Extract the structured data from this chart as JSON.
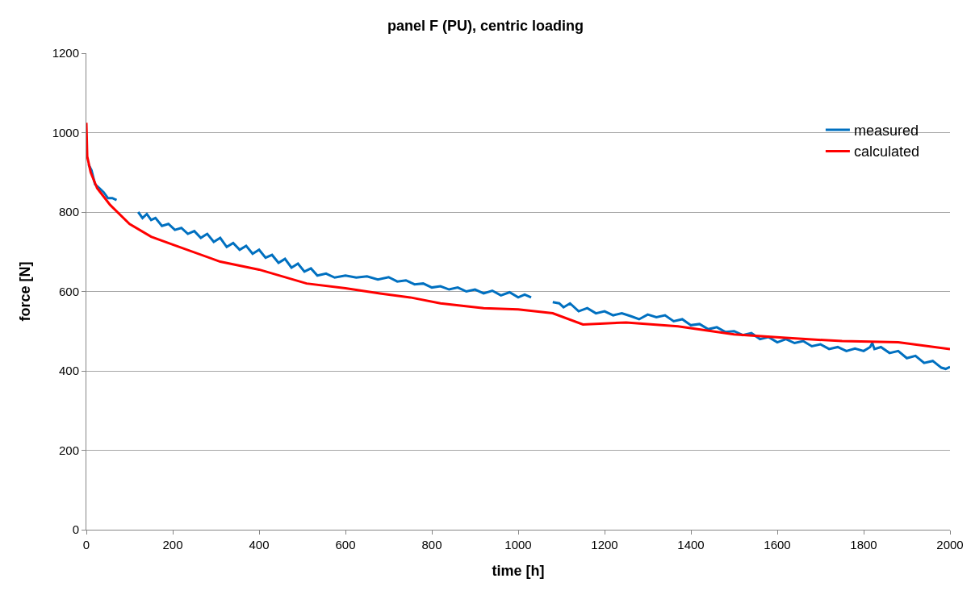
{
  "chart_data": {
    "type": "line",
    "title": "panel F (PU), centric loading",
    "xlabel": "time [h]",
    "ylabel": "force [N]",
    "xlim": [
      0,
      2000
    ],
    "xticks": [
      0,
      200,
      400,
      600,
      800,
      1000,
      1200,
      1400,
      1600,
      1800,
      2000
    ],
    "ylim": [
      0,
      1200
    ],
    "yticks": [
      0,
      200,
      400,
      600,
      800,
      1000,
      1200
    ],
    "grid": "y",
    "legend": "top right",
    "marker": "none",
    "line_style": "solid",
    "series": [
      {
        "name": "measured",
        "color": "#0070c0",
        "x": [
          5,
          12,
          20,
          30,
          40,
          50,
          60,
          70,
          95,
          120,
          130,
          140,
          150,
          160,
          175,
          190,
          205,
          220,
          235,
          250,
          265,
          280,
          295,
          310,
          325,
          340,
          355,
          370,
          385,
          400,
          415,
          430,
          445,
          460,
          475,
          490,
          505,
          520,
          535,
          555,
          575,
          600,
          625,
          650,
          675,
          700,
          720,
          740,
          760,
          780,
          800,
          820,
          840,
          860,
          880,
          900,
          920,
          940,
          960,
          980,
          1000,
          1015,
          1030,
          1055,
          1080,
          1095,
          1105,
          1120,
          1140,
          1160,
          1180,
          1200,
          1220,
          1240,
          1260,
          1280,
          1300,
          1320,
          1340,
          1360,
          1380,
          1400,
          1420,
          1440,
          1460,
          1480,
          1500,
          1520,
          1540,
          1560,
          1580,
          1600,
          1620,
          1640,
          1660,
          1680,
          1700,
          1720,
          1740,
          1760,
          1780,
          1800,
          1815,
          1820,
          1825,
          1840,
          1860,
          1880,
          1900,
          1920,
          1940,
          1960,
          1980,
          1990,
          2000
        ],
        "values": [
          920,
          905,
          870,
          860,
          850,
          835,
          835,
          830,
          null,
          800,
          785,
          795,
          780,
          785,
          765,
          770,
          755,
          760,
          745,
          752,
          735,
          745,
          725,
          735,
          712,
          722,
          705,
          715,
          695,
          705,
          685,
          692,
          672,
          682,
          660,
          670,
          650,
          658,
          640,
          645,
          635,
          640,
          635,
          638,
          630,
          636,
          625,
          628,
          618,
          620,
          610,
          613,
          605,
          610,
          600,
          605,
          595,
          602,
          590,
          598,
          585,
          592,
          585,
          null,
          573,
          570,
          560,
          570,
          550,
          558,
          545,
          550,
          540,
          545,
          538,
          530,
          542,
          535,
          540,
          525,
          530,
          515,
          518,
          505,
          510,
          498,
          500,
          490,
          495,
          480,
          485,
          472,
          480,
          470,
          475,
          462,
          467,
          455,
          460,
          450,
          456,
          450,
          460,
          470,
          455,
          460,
          445,
          450,
          432,
          438,
          420,
          425,
          408,
          405,
          410
        ]
      },
      {
        "name": "calculated",
        "color": "#ff0000",
        "x": [
          0,
          2,
          10,
          25,
          55,
          100,
          150,
          200,
          310,
          400,
          510,
          600,
          680,
          750,
          820,
          920,
          1000,
          1080,
          1150,
          1250,
          1370,
          1500,
          1620,
          1750,
          1880,
          2000
        ],
        "values": [
          1025,
          940,
          900,
          860,
          818,
          770,
          738,
          718,
          675,
          655,
          620,
          608,
          595,
          585,
          570,
          558,
          555,
          545,
          517,
          522,
          512,
          492,
          483,
          475,
          472,
          455
        ]
      }
    ]
  }
}
